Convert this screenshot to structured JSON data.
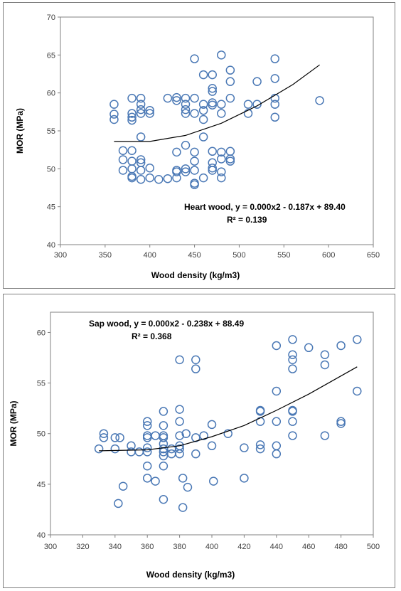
{
  "chart_data": [
    {
      "type": "scatter",
      "xlabel": "Wood density (kg/m3)",
      "ylabel": "MOR (MPa)",
      "xlim": [
        300,
        650
      ],
      "ylim": [
        40,
        70
      ],
      "xticks": [
        300,
        350,
        400,
        450,
        500,
        550,
        600,
        650
      ],
      "yticks": [
        40,
        45,
        50,
        55,
        60,
        65,
        70
      ],
      "grid": false,
      "marker_color": "#4a78b5",
      "trend_color": "#000000",
      "annotation": [
        "Heart wood, y = 0.000x2 - 0.187x + 89.40",
        "R² = 0.139"
      ],
      "trendline": {
        "type": "polynomial",
        "order": 2,
        "points": [
          [
            360,
            53.6
          ],
          [
            400,
            53.6
          ],
          [
            440,
            54.4
          ],
          [
            480,
            56.0
          ],
          [
            520,
            58.3
          ],
          [
            560,
            61.1
          ],
          [
            590,
            63.7
          ]
        ]
      },
      "series": [
        {
          "points": [
            [
              360,
              58.5
            ],
            [
              360,
              57.2
            ],
            [
              360,
              56.5
            ],
            [
              370,
              52.4
            ],
            [
              370,
              51.2
            ],
            [
              370,
              49.8
            ],
            [
              380,
              59.3
            ],
            [
              380,
              57.3
            ],
            [
              380,
              56.8
            ],
            [
              380,
              56.4
            ],
            [
              380,
              52.4
            ],
            [
              380,
              51.0
            ],
            [
              380,
              50.0
            ],
            [
              380,
              49.0
            ],
            [
              380,
              48.8
            ],
            [
              390,
              59.3
            ],
            [
              390,
              58.5
            ],
            [
              390,
              57.8
            ],
            [
              390,
              57.3
            ],
            [
              390,
              54.2
            ],
            [
              390,
              51.2
            ],
            [
              390,
              50.8
            ],
            [
              390,
              49.8
            ],
            [
              390,
              48.6
            ],
            [
              400,
              57.7
            ],
            [
              400,
              57.3
            ],
            [
              400,
              50.1
            ],
            [
              400,
              48.8
            ],
            [
              410,
              48.6
            ],
            [
              420,
              59.3
            ],
            [
              420,
              48.7
            ],
            [
              430,
              59.4
            ],
            [
              430,
              59.0
            ],
            [
              430,
              52.2
            ],
            [
              430,
              49.8
            ],
            [
              430,
              49.6
            ],
            [
              430,
              48.8
            ],
            [
              440,
              59.3
            ],
            [
              440,
              58.5
            ],
            [
              440,
              57.8
            ],
            [
              440,
              57.3
            ],
            [
              440,
              53.1
            ],
            [
              440,
              50.0
            ],
            [
              440,
              49.6
            ],
            [
              450,
              64.5
            ],
            [
              450,
              59.3
            ],
            [
              450,
              57.3
            ],
            [
              450,
              52.2
            ],
            [
              450,
              51.0
            ],
            [
              450,
              49.8
            ],
            [
              450,
              48.1
            ],
            [
              450,
              47.9
            ],
            [
              460,
              62.4
            ],
            [
              460,
              58.5
            ],
            [
              460,
              57.7
            ],
            [
              460,
              56.5
            ],
            [
              460,
              54.2
            ],
            [
              460,
              48.8
            ],
            [
              470,
              62.4
            ],
            [
              470,
              60.6
            ],
            [
              470,
              60.2
            ],
            [
              470,
              58.7
            ],
            [
              470,
              58.4
            ],
            [
              470,
              52.3
            ],
            [
              470,
              50.8
            ],
            [
              470,
              50.1
            ],
            [
              470,
              49.8
            ],
            [
              480,
              65.0
            ],
            [
              480,
              58.5
            ],
            [
              480,
              57.3
            ],
            [
              480,
              52.2
            ],
            [
              480,
              51.3
            ],
            [
              480,
              49.6
            ],
            [
              480,
              48.8
            ],
            [
              490,
              63.0
            ],
            [
              490,
              61.5
            ],
            [
              490,
              59.3
            ],
            [
              490,
              52.3
            ],
            [
              490,
              51.3
            ],
            [
              490,
              51.0
            ],
            [
              510,
              58.5
            ],
            [
              510,
              57.3
            ],
            [
              520,
              61.5
            ],
            [
              520,
              58.5
            ],
            [
              540,
              64.5
            ],
            [
              540,
              61.9
            ],
            [
              540,
              59.3
            ],
            [
              540,
              58.5
            ],
            [
              540,
              56.8
            ],
            [
              590,
              59.0
            ]
          ]
        }
      ]
    },
    {
      "type": "scatter",
      "xlabel": "Wood density (kg/m3)",
      "ylabel": "MOR (MPa)",
      "xlim": [
        300,
        500
      ],
      "ylim": [
        40,
        62
      ],
      "xticks": [
        300,
        320,
        340,
        360,
        380,
        400,
        420,
        440,
        460,
        480,
        500
      ],
      "yticks": [
        40,
        45,
        50,
        55,
        60
      ],
      "grid": false,
      "marker_color": "#4a78b5",
      "trend_color": "#000000",
      "annotation": [
        "Sap wood, y = 0.000x2 - 0.238x + 88.49",
        "R² = 0.368"
      ],
      "trendline": {
        "type": "polynomial",
        "order": 2,
        "points": [
          [
            330,
            48.3
          ],
          [
            360,
            48.4
          ],
          [
            380,
            48.8
          ],
          [
            400,
            49.7
          ],
          [
            420,
            50.8
          ],
          [
            440,
            52.3
          ],
          [
            460,
            53.9
          ],
          [
            490,
            56.6
          ]
        ]
      },
      "series": [
        {
          "points": [
            [
              330,
              48.5
            ],
            [
              333,
              50.0
            ],
            [
              333,
              49.6
            ],
            [
              340,
              49.6
            ],
            [
              340,
              48.5
            ],
            [
              342,
              43.1
            ],
            [
              343,
              49.6
            ],
            [
              345,
              44.8
            ],
            [
              350,
              48.8
            ],
            [
              350,
              48.2
            ],
            [
              355,
              48.2
            ],
            [
              360,
              51.2
            ],
            [
              360,
              50.8
            ],
            [
              360,
              49.8
            ],
            [
              360,
              49.6
            ],
            [
              360,
              48.6
            ],
            [
              360,
              48.2
            ],
            [
              360,
              46.8
            ],
            [
              360,
              45.6
            ],
            [
              365,
              49.8
            ],
            [
              365,
              45.3
            ],
            [
              370,
              52.2
            ],
            [
              370,
              50.8
            ],
            [
              370,
              49.8
            ],
            [
              370,
              49.6
            ],
            [
              370,
              49.0
            ],
            [
              370,
              48.5
            ],
            [
              370,
              48.2
            ],
            [
              370,
              47.8
            ],
            [
              370,
              46.8
            ],
            [
              370,
              43.5
            ],
            [
              375,
              48.5
            ],
            [
              375,
              48.0
            ],
            [
              380,
              57.3
            ],
            [
              380,
              52.4
            ],
            [
              380,
              51.2
            ],
            [
              380,
              49.8
            ],
            [
              380,
              48.8
            ],
            [
              380,
              48.5
            ],
            [
              380,
              48.0
            ],
            [
              382,
              45.6
            ],
            [
              382,
              42.7
            ],
            [
              384,
              50.0
            ],
            [
              385,
              44.7
            ],
            [
              390,
              57.3
            ],
            [
              390,
              56.4
            ],
            [
              390,
              49.6
            ],
            [
              390,
              48.0
            ],
            [
              395,
              49.8
            ],
            [
              400,
              50.9
            ],
            [
              400,
              48.8
            ],
            [
              401,
              45.3
            ],
            [
              410,
              50.0
            ],
            [
              420,
              48.6
            ],
            [
              420,
              45.6
            ],
            [
              430,
              52.3
            ],
            [
              430,
              52.2
            ],
            [
              430,
              51.2
            ],
            [
              430,
              48.9
            ],
            [
              430,
              48.5
            ],
            [
              440,
              58.7
            ],
            [
              440,
              54.2
            ],
            [
              440,
              51.2
            ],
            [
              440,
              48.8
            ],
            [
              440,
              48.0
            ],
            [
              450,
              59.3
            ],
            [
              450,
              57.8
            ],
            [
              450,
              57.3
            ],
            [
              450,
              56.4
            ],
            [
              450,
              52.3
            ],
            [
              450,
              52.2
            ],
            [
              450,
              51.2
            ],
            [
              450,
              49.8
            ],
            [
              460,
              58.5
            ],
            [
              470,
              57.8
            ],
            [
              470,
              56.8
            ],
            [
              470,
              49.8
            ],
            [
              480,
              58.7
            ],
            [
              480,
              51.2
            ],
            [
              480,
              51.0
            ],
            [
              490,
              59.3
            ],
            [
              490,
              54.2
            ]
          ]
        }
      ]
    }
  ]
}
